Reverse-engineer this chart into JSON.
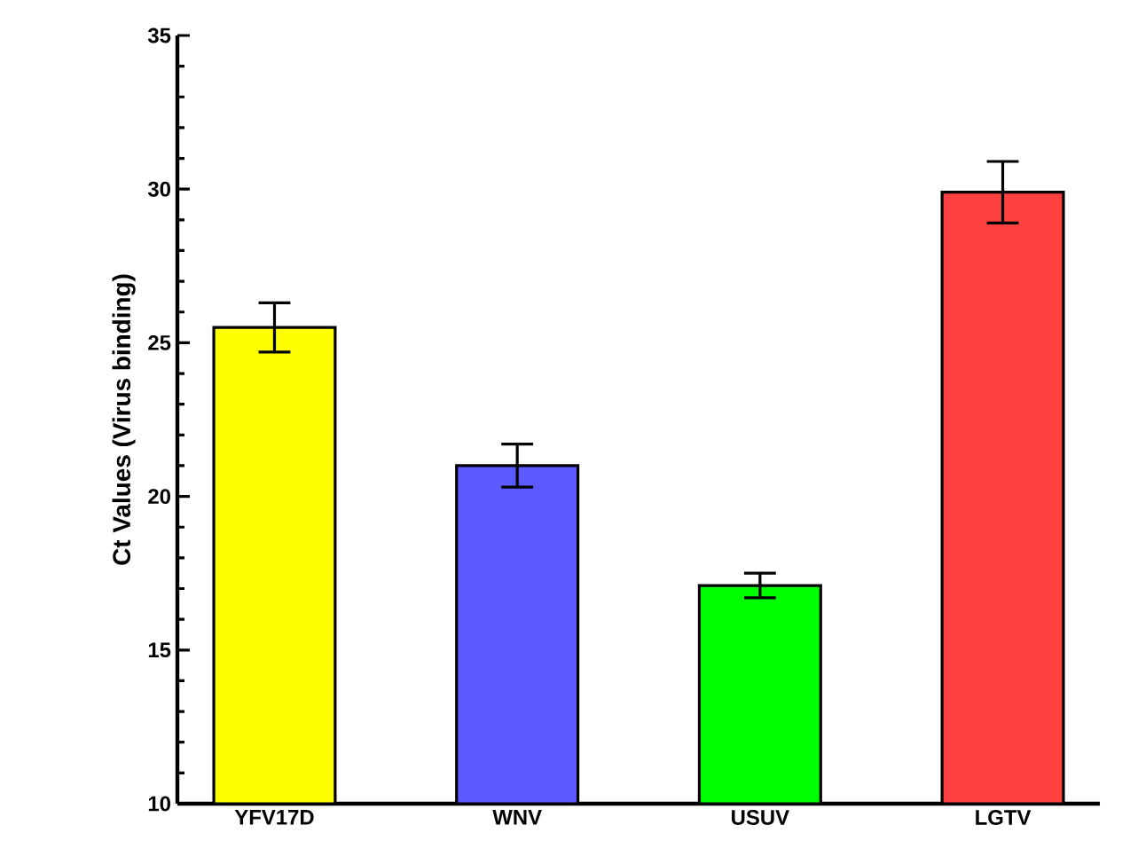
{
  "chart_data": {
    "type": "bar",
    "ylabel": "Ct Values (Virus binding)",
    "categories": [
      "YFV17D",
      "WNV",
      "USUV",
      "LGTV"
    ],
    "values": [
      25.5,
      21.0,
      17.1,
      29.9
    ],
    "errors": [
      0.8,
      0.7,
      0.4,
      1.0
    ],
    "colors": [
      "#ffff00",
      "#5a5aff",
      "#00ff00",
      "#ff4040"
    ],
    "ylim": [
      10,
      35
    ],
    "yticks": [
      10,
      15,
      20,
      25,
      30,
      35
    ]
  }
}
